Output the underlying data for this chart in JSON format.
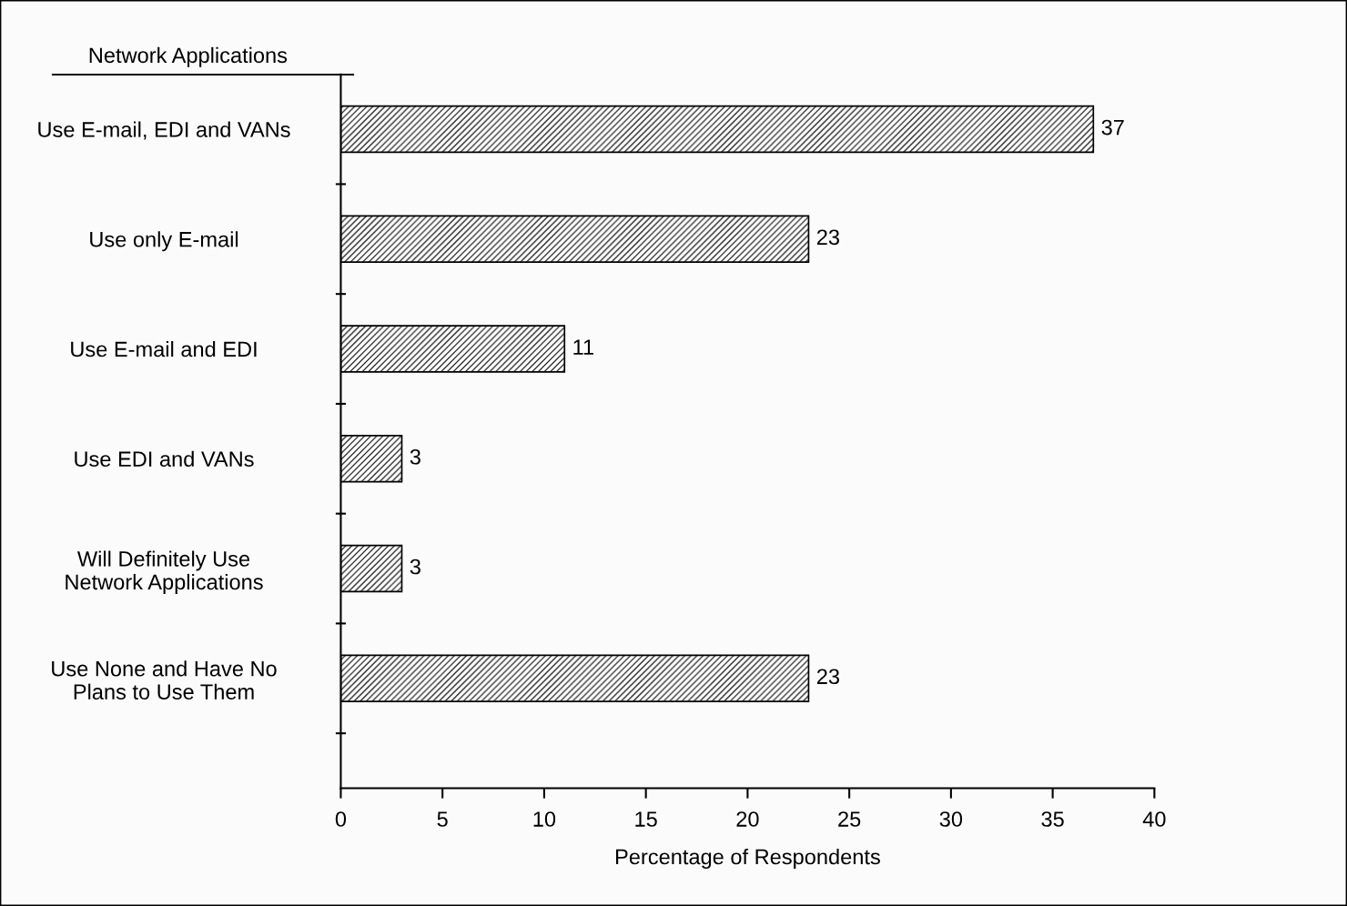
{
  "chart_data": {
    "type": "bar",
    "orientation": "horizontal",
    "ylabel": "Network Applications",
    "xlabel": "Percentage of Respondents",
    "categories": [
      "Use E-mail, EDI and VANs",
      "Use only E-mail",
      "Use E-mail and EDI",
      "Use EDI and VANs",
      "Will Definitely Use\nNetwork Applications",
      "Use None and Have No\nPlans to Use Them"
    ],
    "values": [
      37,
      23,
      11,
      3,
      3,
      23
    ],
    "color": "#000000",
    "xlim": [
      0,
      40
    ],
    "xticks": [
      0,
      5,
      10,
      15,
      20,
      25,
      30,
      35,
      40
    ],
    "data_labels": true,
    "grid": false
  }
}
